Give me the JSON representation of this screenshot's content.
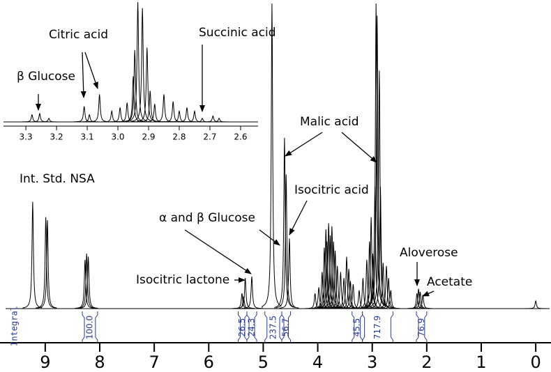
{
  "chart_data": [
    {
      "type": "spectrum",
      "color": "#000000",
      "integral_color": "#2b3a99",
      "xlim": [
        9.83,
        -0.28
      ],
      "xticks": [
        9,
        8,
        7,
        6,
        5,
        4,
        3,
        2,
        1,
        0
      ],
      "ylim": [
        0,
        100
      ],
      "peaks": {
        "x": [
          9.23,
          8.99,
          8.96,
          8.27,
          8.24,
          8.21,
          5.39,
          5.36,
          5.33,
          5.21,
          4.84,
          4.61,
          4.58,
          4.52,
          4.05,
          3.98,
          3.92,
          3.88,
          3.85,
          3.83,
          3.8,
          3.77,
          3.74,
          3.71,
          3.68,
          3.64,
          3.58,
          3.52,
          3.47,
          3.43,
          3.4,
          3.35,
          3.24,
          3.17,
          3.1,
          3.05,
          3.02,
          2.99,
          2.95,
          2.93,
          2.91,
          2.87,
          2.85,
          2.8,
          2.74,
          2.7,
          2.66,
          2.18,
          2.15,
          2.12,
          2.07,
          0
        ],
        "values": [
          35,
          30,
          29,
          16,
          18,
          17,
          5,
          4,
          10,
          10.5,
          100,
          56,
          44,
          23,
          5,
          7,
          12,
          20,
          26,
          22,
          28,
          24,
          27,
          22,
          19,
          14,
          12,
          10,
          17,
          13,
          9,
          8,
          6,
          10,
          16,
          22,
          30,
          18,
          40,
          100,
          96,
          78,
          40,
          15,
          14,
          10,
          6,
          5,
          6.5,
          5.5,
          4.5,
          2.5
        ]
      },
      "annotations": [
        "Int. Std. NSA",
        "Malic acid",
        "Isocitric acid",
        "α and β Glucose",
        "Isocitric lactone",
        "Aloverose",
        "Acetate"
      ],
      "integral_label": "Integral",
      "integrals": {
        "ranges": [
          [
            8.32,
            8.04
          ],
          [
            5.46,
            5.3
          ],
          [
            5.3,
            5.12
          ],
          [
            4.97,
            4.66
          ],
          [
            4.66,
            4.5
          ],
          [
            3.37,
            3.18
          ],
          [
            3.18,
            2.62
          ],
          [
            2.19,
            2.0
          ]
        ],
        "values": [
          100,
          26.5,
          24.3,
          237.5,
          56.7,
          45.5,
          717.9,
          76.9
        ],
        "value_labels": [
          "100.0",
          "26.5",
          "24.3",
          "237.5",
          "56.7",
          "45.5",
          "717.9",
          "76.9"
        ]
      }
    },
    {
      "type": "spectrum",
      "color": "#000000",
      "xlim": [
        3.373,
        2.543
      ],
      "xticks": [
        3.3,
        3.2,
        3.1,
        {
          "value": 3,
          "label": "3.0"
        },
        2.9,
        2.8,
        2.7,
        2.6
      ],
      "ylim": [
        0,
        100
      ],
      "peaks": {
        "x": [
          3.28,
          3.255,
          3.225,
          3.11,
          3.093,
          3.06,
          3.02,
          2.993,
          2.97,
          2.95,
          2.945,
          2.935,
          2.92,
          2.905,
          2.895,
          2.88,
          2.85,
          2.82,
          2.8,
          2.775,
          2.75,
          2.725,
          2.69,
          2.67
        ],
        "values": [
          6,
          7,
          3,
          13,
          6,
          23,
          9,
          12,
          16,
          38,
          60,
          100,
          95,
          62,
          26,
          15,
          23,
          17,
          9,
          12,
          9,
          3,
          5,
          3
        ]
      },
      "annotations": [
        "β Glucose",
        "Citric acid",
        "Succinic acid"
      ]
    }
  ]
}
